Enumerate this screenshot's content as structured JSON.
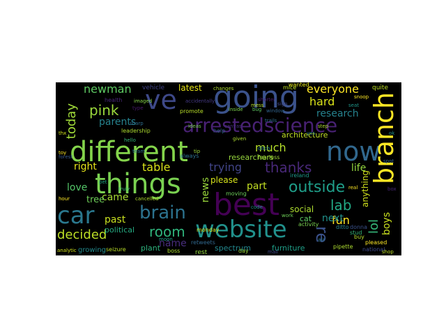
{
  "words": [
    {
      "text": "different",
      "color": "#84d44b"
    },
    {
      "text": "things",
      "color": "#7ad151"
    },
    {
      "text": "best",
      "color": "#440154"
    },
    {
      "text": "going",
      "color": "#3b528b"
    },
    {
      "text": "ve",
      "color": "#3e4989"
    },
    {
      "text": "now",
      "color": "#31688e"
    },
    {
      "text": "branch",
      "color": "#fde725"
    },
    {
      "text": "website",
      "color": "#21918c"
    },
    {
      "text": "car",
      "color": "#2a788e"
    },
    {
      "text": "arrestedscience",
      "color": "#482173"
    },
    {
      "text": "brain",
      "color": "#2c728e"
    },
    {
      "text": "room",
      "color": "#2fb47c"
    },
    {
      "text": "outside",
      "color": "#1f9e89"
    },
    {
      "text": "pink",
      "color": "#9bd93c"
    },
    {
      "text": "newman",
      "color": "#5ec962"
    },
    {
      "text": "everyone",
      "color": "#fde725"
    },
    {
      "text": "today",
      "color": "#a0da39"
    },
    {
      "text": "decided",
      "color": "#bddf26"
    },
    {
      "text": "thanks",
      "color": "#482878"
    },
    {
      "text": "lab",
      "color": "#22a884"
    },
    {
      "text": "lol",
      "color": "#35b779"
    },
    {
      "text": "re",
      "color": "#3b528b"
    },
    {
      "text": "hard",
      "color": "#dae319"
    },
    {
      "text": "fun",
      "color": "#fde725"
    },
    {
      "text": "trying",
      "color": "#414487"
    },
    {
      "text": "much",
      "color": "#b5de2b"
    },
    {
      "text": "table",
      "color": "#d8e219"
    },
    {
      "text": "right",
      "color": "#e5e419"
    },
    {
      "text": "love",
      "color": "#54c568"
    },
    {
      "text": "part",
      "color": "#c2df23"
    },
    {
      "text": "parents",
      "color": "#26828e"
    },
    {
      "text": "research",
      "color": "#26828e"
    },
    {
      "text": "past",
      "color": "#c8e020"
    },
    {
      "text": "came",
      "color": "#a8db34"
    },
    {
      "text": "name",
      "color": "#472d7b"
    },
    {
      "text": "news",
      "color": "#9bd93c"
    },
    {
      "text": "next",
      "color": "#21918c"
    },
    {
      "text": "boys",
      "color": "#cae11f"
    },
    {
      "text": "life",
      "color": "#95d840"
    },
    {
      "text": "tree",
      "color": "#6ece58"
    },
    {
      "text": "anything",
      "color": "#d0e11c"
    },
    {
      "text": "social",
      "color": "#addc30"
    },
    {
      "text": "please",
      "color": "#d5e21a"
    },
    {
      "text": "researchers",
      "color": "#98d83e"
    },
    {
      "text": "architecture",
      "color": "#c0df25"
    },
    {
      "text": "latest",
      "color": "#e7e419"
    },
    {
      "text": "spectrum",
      "color": "#23888e"
    },
    {
      "text": "furniture",
      "color": "#1f9f88"
    },
    {
      "text": "plant",
      "color": "#2db27d"
    },
    {
      "text": "political",
      "color": "#25ab82"
    },
    {
      "text": "growing",
      "color": "#238a8d"
    },
    {
      "text": "vehicle",
      "color": "#414487"
    },
    {
      "text": "leadership",
      "color": "#addc30"
    },
    {
      "text": "promote",
      "color": "#b8de29"
    },
    {
      "text": "ireland",
      "color": "#1e9b8a"
    },
    {
      "text": "rest",
      "color": "#95d840"
    },
    {
      "text": "activity",
      "color": "#7ad151"
    },
    {
      "text": "moving",
      "color": "#6ccd5a"
    },
    {
      "text": "pipette",
      "color": "#addc30"
    },
    {
      "text": "pleased",
      "color": "#fde725"
    },
    {
      "text": "national",
      "color": "#3e4989"
    },
    {
      "text": "cat",
      "color": "#5ec962"
    },
    {
      "text": "ditto",
      "color": "#26828e"
    },
    {
      "text": "quite",
      "color": "#bddf26"
    },
    {
      "text": "buy",
      "color": "#b5de2b"
    },
    {
      "text": "air",
      "color": "#2c728e"
    },
    {
      "text": "health",
      "color": "#482878"
    },
    {
      "text": "wanted",
      "color": "#e2e418"
    },
    {
      "text": "fearless",
      "color": "#a2da37"
    },
    {
      "text": "always",
      "color": "#2d718e"
    },
    {
      "text": "help",
      "color": "#33638d"
    },
    {
      "text": "seizure",
      "color": "#bade28"
    },
    {
      "text": "boss",
      "color": "#ade030"
    },
    {
      "text": "day",
      "color": "#9bd93c"
    },
    {
      "text": "monday",
      "color": "#d8e219"
    },
    {
      "text": "retweets",
      "color": "#31688e"
    },
    {
      "text": "cancelled",
      "color": "#b0dd2f"
    },
    {
      "text": "donna",
      "color": "#3b528b"
    },
    {
      "text": "stud",
      "color": "#35b779"
    },
    {
      "text": "mice",
      "color": "#bddf26"
    },
    {
      "text": "analytic",
      "color": "#d0e11c"
    },
    {
      "text": "accidentally",
      "color": "#443983"
    },
    {
      "text": "shorter",
      "color": "#481f70"
    },
    {
      "text": "imaged",
      "color": "#86d549"
    },
    {
      "text": "inside",
      "color": "#7fd34e"
    },
    {
      "text": "ditch",
      "color": "#25838e"
    },
    {
      "text": "trails",
      "color": "#2e6f8e"
    },
    {
      "text": "seat",
      "color": "#1f978b"
    },
    {
      "text": "canvas",
      "color": "#46307e"
    },
    {
      "text": "ideas",
      "color": "#7ad151"
    },
    {
      "text": "changes",
      "color": "#addc30"
    },
    {
      "text": "moon",
      "color": "#1fa188"
    },
    {
      "text": "snoop",
      "color": "#fde725"
    },
    {
      "text": "bug",
      "color": "#5ec962"
    },
    {
      "text": "sign",
      "color": "#3f4788"
    },
    {
      "text": "given",
      "color": "#addc30"
    },
    {
      "text": "window",
      "color": "#32648e"
    },
    {
      "text": "truly",
      "color": "#3fbc73"
    },
    {
      "text": "type",
      "color": "#481a6c"
    },
    {
      "text": "ok",
      "color": "#20928c"
    },
    {
      "text": "yes",
      "color": "#2a788e"
    },
    {
      "text": "thx",
      "color": "#d2e21b"
    },
    {
      "text": "toy",
      "color": "#fde725"
    },
    {
      "text": "pet",
      "color": "#22a884"
    },
    {
      "text": "forest",
      "color": "#38598c"
    },
    {
      "text": "sharp",
      "color": "#2e6e8e"
    },
    {
      "text": "mess",
      "color": "#b8de29"
    },
    {
      "text": "step",
      "color": "#addc30"
    },
    {
      "text": "spot",
      "color": "#31688e"
    },
    {
      "text": "hour",
      "color": "#fde725"
    },
    {
      "text": "tip",
      "color": "#9bd93c"
    },
    {
      "text": "code",
      "color": "#21918c"
    },
    {
      "text": "work",
      "color": "#6ece58"
    },
    {
      "text": "box",
      "color": "#482878"
    },
    {
      "text": "mail",
      "color": "#3e4989"
    },
    {
      "text": "shop",
      "color": "#bddf26"
    },
    {
      "text": "hello",
      "color": "#35b779"
    },
    {
      "text": "team",
      "color": "#2c728e"
    },
    {
      "text": "real",
      "color": "#fde725"
    }
  ]
}
